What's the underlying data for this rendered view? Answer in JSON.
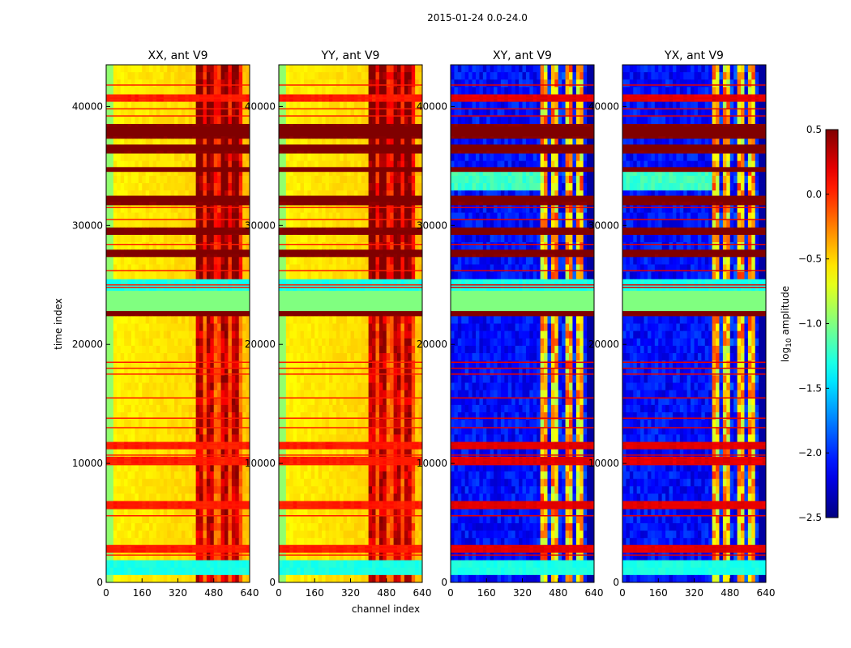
{
  "figure": {
    "suptitle": "2015-01-24 0.0-24.0",
    "xlabel": "channel index",
    "ylabel": "time index",
    "colorbar_label_prefix": "log",
    "colorbar_label_sub": "10",
    "colorbar_label_suffix": " amplitude"
  },
  "chart_data": {
    "type": "heatmap",
    "panels": [
      {
        "title": "XX, ant V9",
        "kind": "parallel"
      },
      {
        "title": "YY, ant V9",
        "kind": "parallel"
      },
      {
        "title": "XY, ant V9",
        "kind": "cross"
      },
      {
        "title": "YX, ant V9",
        "kind": "cross"
      }
    ],
    "xlim": [
      0,
      640
    ],
    "ylim": [
      0,
      43500
    ],
    "xticks": [
      0,
      160,
      320,
      480,
      640
    ],
    "xtick_labels": [
      "0",
      "160",
      "320",
      "480",
      "640"
    ],
    "yticks": [
      0,
      10000,
      20000,
      30000,
      40000
    ],
    "ytick_labels": [
      "0",
      "10000",
      "20000",
      "30000",
      "40000"
    ],
    "colorbar": {
      "range": [
        -2.5,
        0.5
      ],
      "ticks": [
        0.5,
        0.0,
        -0.5,
        -1.0,
        -1.5,
        -2.0,
        -2.5
      ],
      "tick_labels": [
        "0.5",
        "0.0",
        "−0.5",
        "−1.0",
        "−1.5",
        "−2.0",
        "−2.5"
      ],
      "colormap": "jet"
    },
    "flagged_time_range": [
      22800,
      24500
    ],
    "flag_value": -1.0
  }
}
